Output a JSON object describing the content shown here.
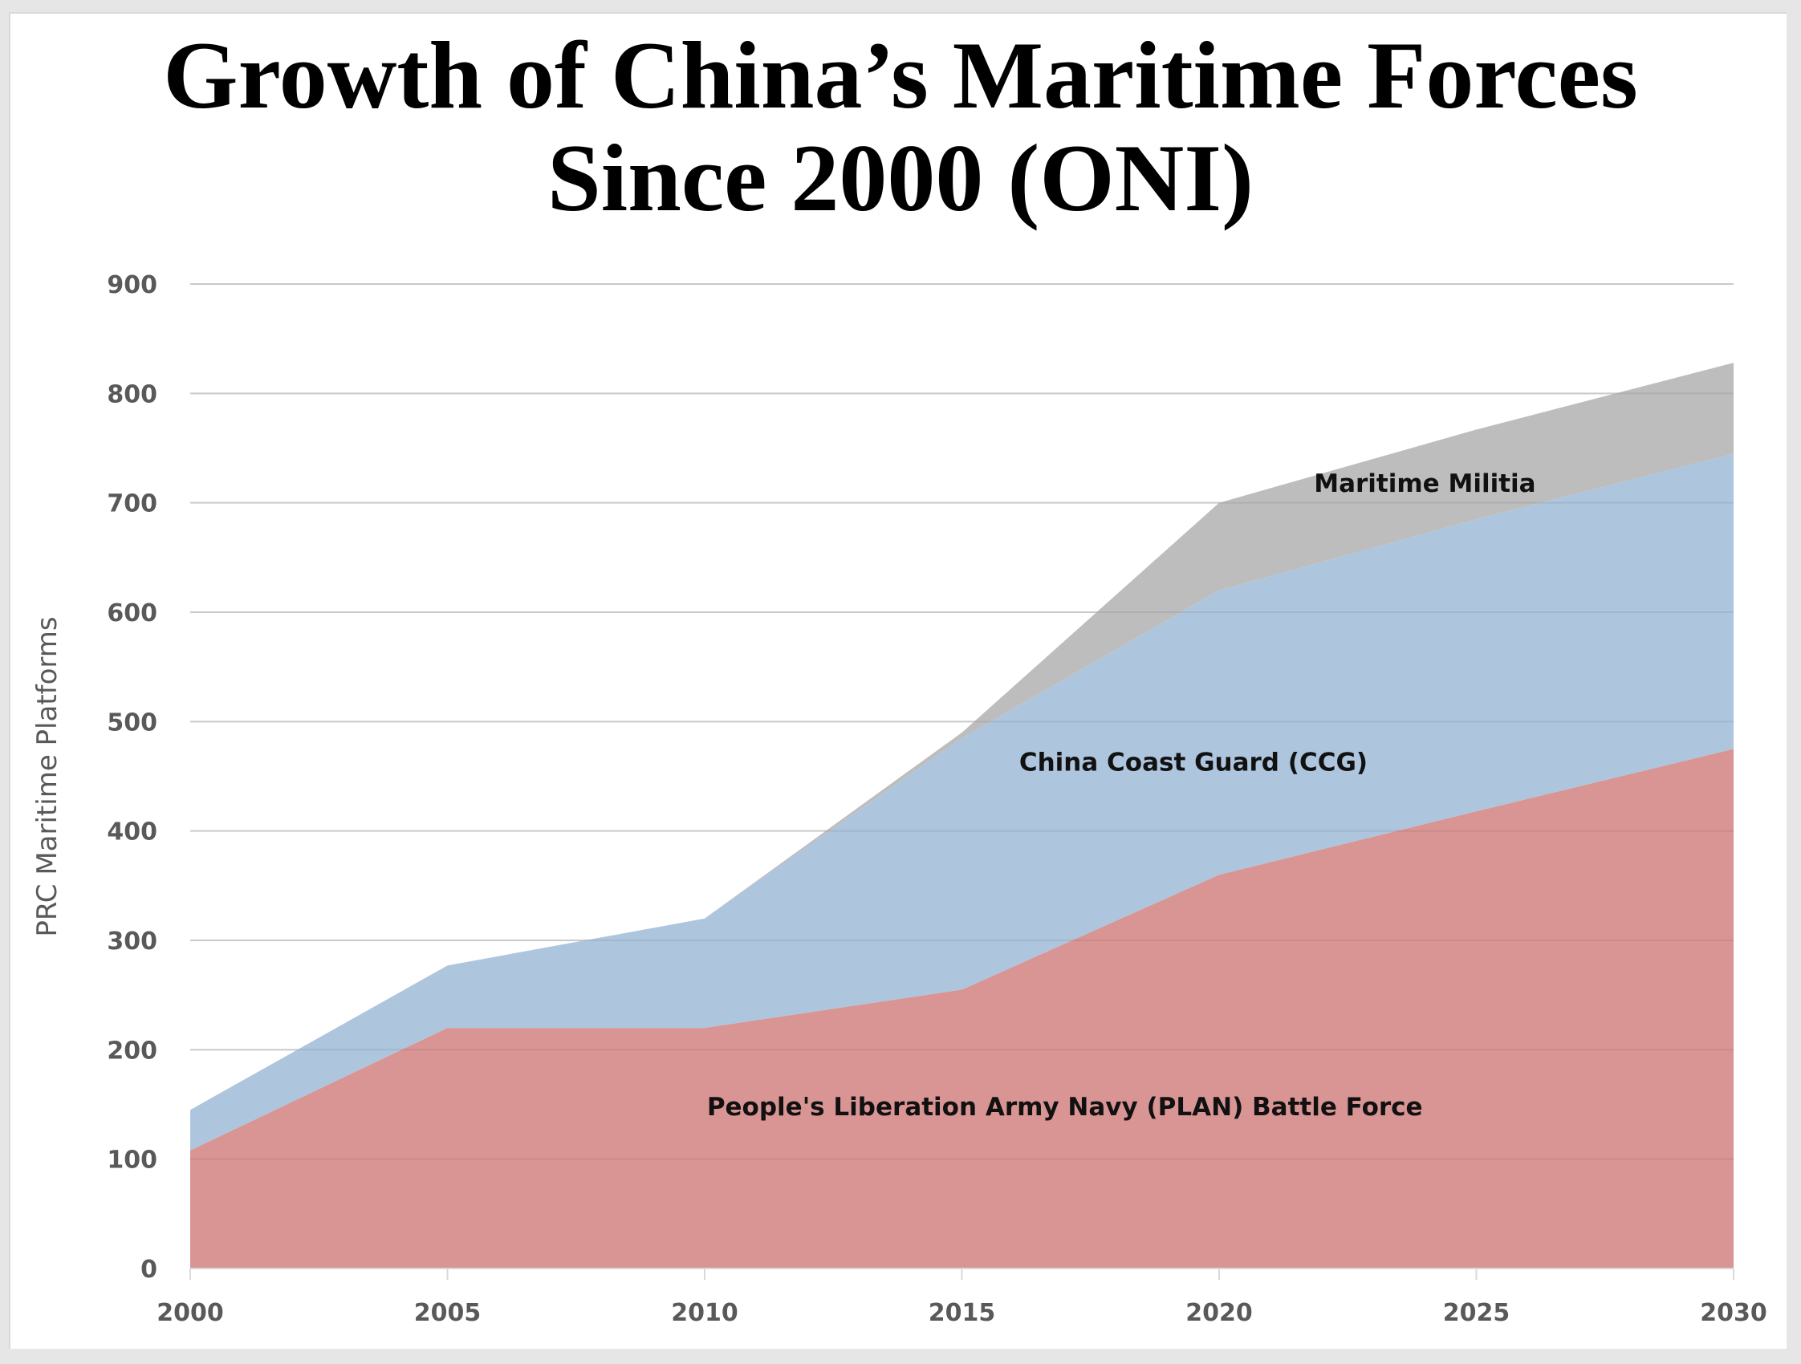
{
  "title_lines": [
    "Growth of China’s Maritime Forces",
    "Since 2000 (ONI)"
  ],
  "chart_data": {
    "type": "area",
    "stacked": true,
    "title": "Growth of China’s Maritime Forces Since 2000 (ONI)",
    "xlabel": "",
    "ylabel": "PRC Maritime Platforms",
    "x": [
      2000,
      2005,
      2010,
      2015,
      2020,
      2025,
      2030
    ],
    "x_tick_labels": [
      "2000",
      "2005",
      "2010",
      "2015",
      "2020",
      "2025",
      "2030"
    ],
    "y_tick_labels": [
      "0",
      "100",
      "200",
      "300",
      "400",
      "500",
      "600",
      "700",
      "800",
      "900"
    ],
    "ylim": [
      0,
      900
    ],
    "xlim": [
      2000,
      2030
    ],
    "grid": true,
    "legend": "none",
    "series": [
      {
        "name": "People's Liberation Army Navy (PLAN) Battle Force",
        "color": "#d99594",
        "values": [
          108,
          220,
          220,
          255,
          360,
          418,
          475
        ]
      },
      {
        "name": "China Coast Guard (CCG)",
        "color": "#aec5de",
        "values": [
          37,
          57,
          100,
          230,
          260,
          267,
          270
        ]
      },
      {
        "name": "Maritime Militia",
        "color": "#bdbdbd",
        "values": [
          0,
          0,
          0,
          5,
          80,
          82,
          83
        ]
      }
    ],
    "annotations": [
      {
        "text": "Maritime Militia",
        "x": 2024,
        "y": 710
      },
      {
        "text": "China Coast Guard (CCG)",
        "x": 2019.5,
        "y": 455
      },
      {
        "text": "People's Liberation Army Navy (PLAN) Battle Force",
        "x": 2017,
        "y": 140
      }
    ]
  }
}
